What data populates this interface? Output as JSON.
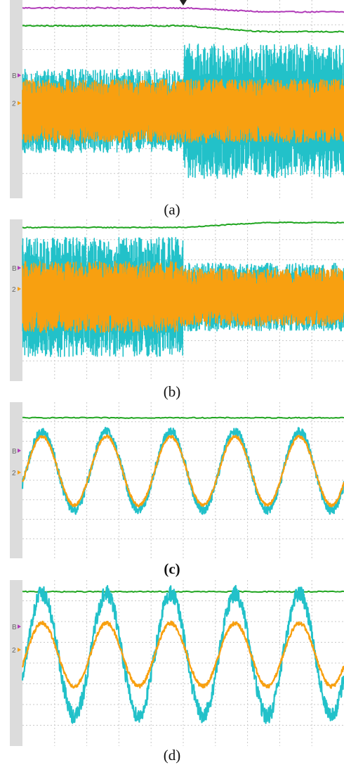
{
  "colors": {
    "purple": "#b03ab8",
    "green": "#1fa51f",
    "cyan": "#22c1c9",
    "orange": "#f8a010",
    "grid": "#c8c8c8",
    "background": "#dcdcdc"
  },
  "chart_data": [
    {
      "type": "line",
      "caption": "(a)",
      "channel_markers": [
        "B",
        "2"
      ],
      "trigger_marker": "T",
      "series": [
        {
          "color": "#b03ab8",
          "level_before": 0.96,
          "level_after": 0.94
        },
        {
          "color": "#1fa51f",
          "level_before": 0.87,
          "level_after": 0.84
        },
        {
          "color": "#22c1c9",
          "amplitude_before": 0.21,
          "amplitude_after": 0.34
        },
        {
          "color": "#f8a010",
          "amplitude_before": 0.16,
          "amplitude_after": 0.16
        }
      ],
      "event_at": 0.5,
      "grid": true
    },
    {
      "type": "line",
      "caption": "(b)",
      "channel_markers": [
        "B",
        "2"
      ],
      "series": [
        {
          "color": "#1fa51f",
          "level_before": 0.95,
          "level_after": 0.98
        },
        {
          "color": "#22c1c9",
          "amplitude_before": 0.37,
          "amplitude_after": 0.21
        },
        {
          "color": "#f8a010",
          "amplitude_before": 0.22,
          "amplitude_after": 0.18
        }
      ],
      "event_at": 0.5,
      "grid": true
    },
    {
      "type": "line",
      "caption": "(c)",
      "channel_markers": [
        "B",
        "2"
      ],
      "series": [
        {
          "color": "#1fa51f",
          "level": 0.9
        },
        {
          "color": "#22c1c9",
          "cycles": 5,
          "amplitude": 0.25,
          "noise": 0.03
        },
        {
          "color": "#f8a010",
          "cycles": 5,
          "amplitude": 0.22,
          "noise": 0.01
        }
      ],
      "grid": true
    },
    {
      "type": "line",
      "caption": "(d)",
      "channel_markers": [
        "B",
        "2"
      ],
      "series": [
        {
          "color": "#1fa51f",
          "level": 0.93
        },
        {
          "color": "#22c1c9",
          "cycles": 5,
          "amplitude": 0.37,
          "noise": 0.05
        },
        {
          "color": "#f8a010",
          "cycles": 5,
          "amplitude": 0.19,
          "noise": 0.012
        }
      ],
      "grid": true
    }
  ]
}
